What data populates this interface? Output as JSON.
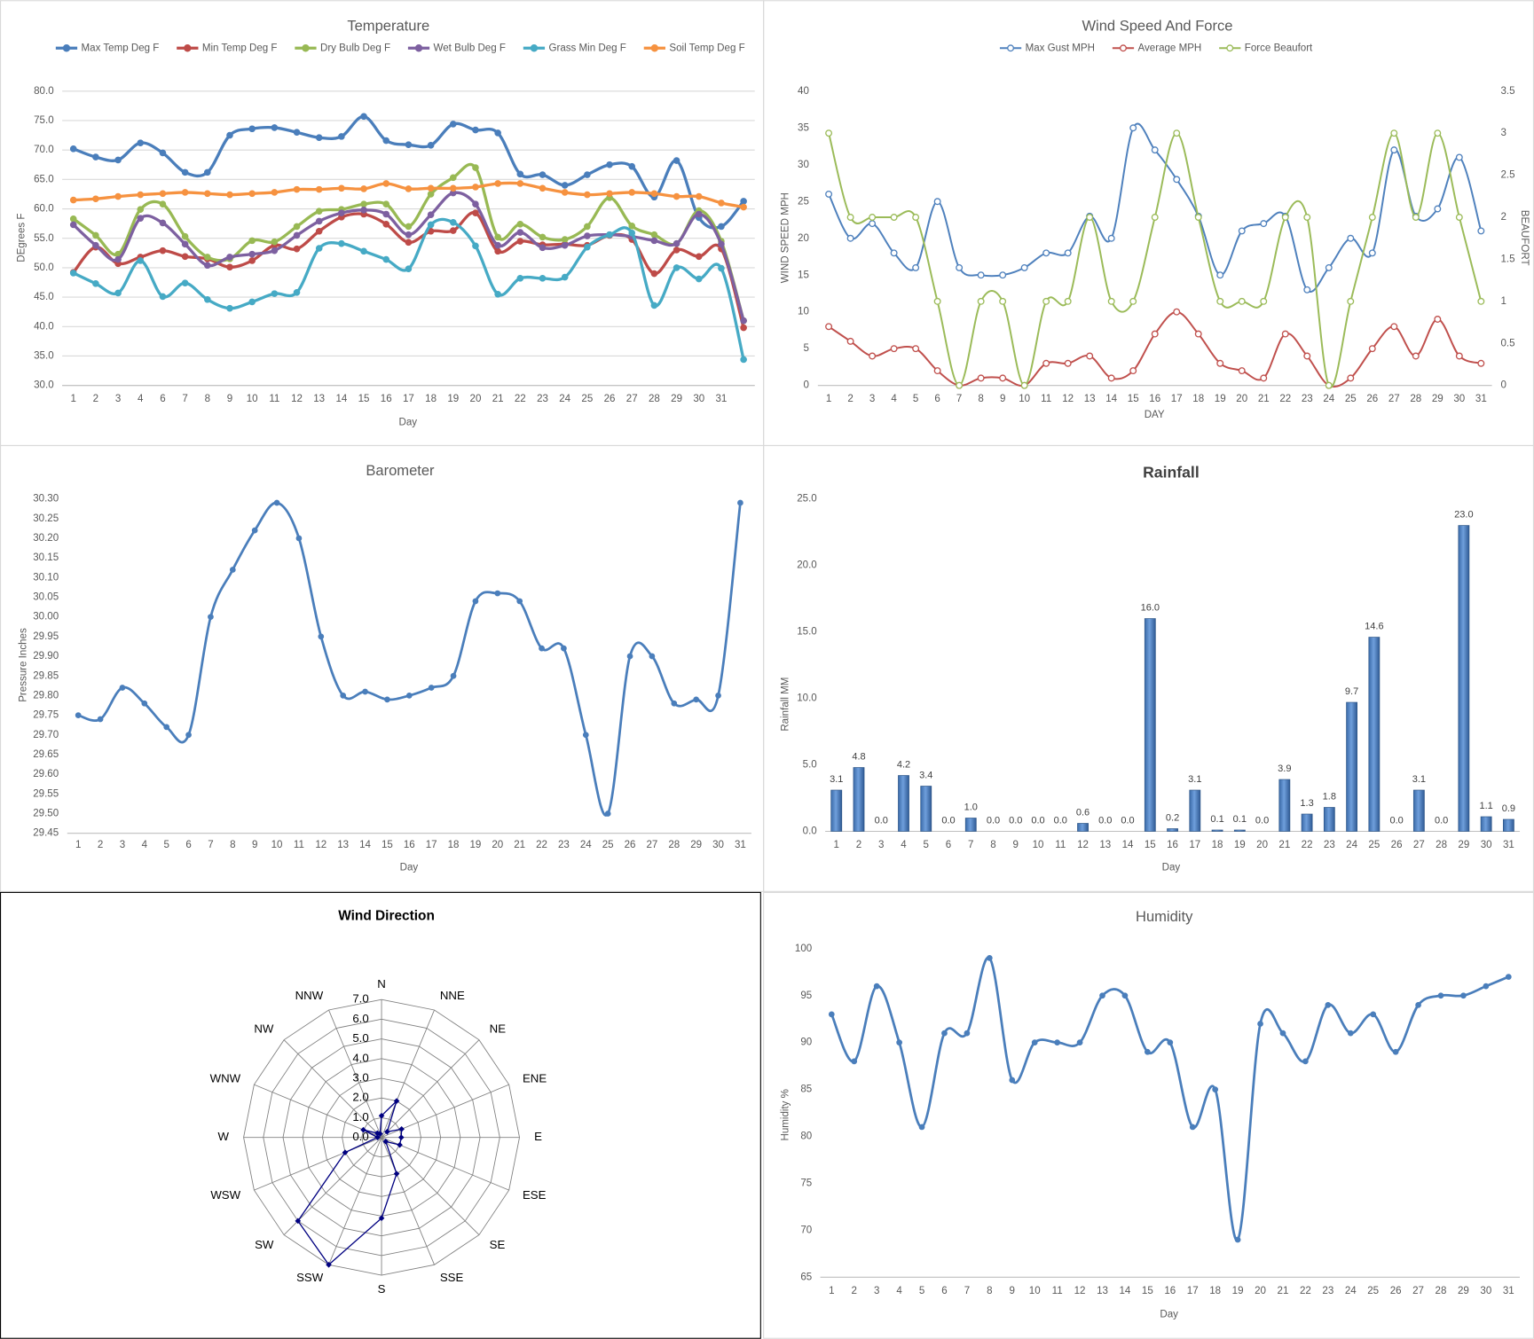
{
  "chart_data": [
    {
      "type": "line",
      "title": "Temperature",
      "x_label": "Day",
      "y_label": "DEgrees F",
      "grid": true,
      "legend": "top",
      "categories": [
        1,
        2,
        3,
        4,
        6,
        7,
        8,
        9,
        10,
        11,
        12,
        13,
        14,
        15,
        16,
        17,
        18,
        19,
        20,
        21,
        22,
        23,
        24,
        25,
        26,
        27,
        28,
        29,
        30,
        31,
        null
      ],
      "ylim": [
        30,
        80
      ],
      "yticks": [
        {
          "value": 30,
          "label": "30.0"
        },
        {
          "value": 35,
          "label": "35.0"
        },
        {
          "value": 40,
          "label": "40.0"
        },
        {
          "value": 45,
          "label": "45.0"
        },
        {
          "value": 50,
          "label": "50.0"
        },
        {
          "value": 55,
          "label": "55.0"
        },
        {
          "value": 60,
          "label": "60.0"
        },
        {
          "value": 65,
          "label": "65.0"
        },
        {
          "value": 70,
          "label": "70.0"
        },
        {
          "value": 75,
          "label": "75.0"
        },
        {
          "value": 80,
          "label": "80.0"
        }
      ],
      "series": [
        {
          "name": "Max Temp Deg F",
          "color": "#4a7ebb",
          "values": [
            70.2,
            68.8,
            68.3,
            71.2,
            69.5,
            66.2,
            66.2,
            72.5,
            73.6,
            73.8,
            73.0,
            72.1,
            72.3,
            75.7,
            71.6,
            70.9,
            70.8,
            74.4,
            73.4,
            72.9,
            65.9,
            65.8,
            64.0,
            65.8,
            67.5,
            67.2,
            62.0,
            68.2,
            58.5,
            57.0,
            61.3
          ]
        },
        {
          "name": "Min Temp Deg F",
          "color": "#be4b48",
          "values": [
            49.2,
            53.5,
            50.7,
            51.8,
            52.9,
            51.9,
            51.5,
            50.1,
            51.2,
            53.8,
            53.2,
            56.2,
            58.6,
            59.1,
            57.4,
            54.3,
            56.2,
            56.3,
            59.3,
            52.8,
            54.5,
            53.9,
            54.0,
            53.8,
            55.5,
            54.8,
            49.0,
            53.0,
            51.9,
            53.2,
            39.8
          ]
        },
        {
          "name": "Dry Bulb Deg F",
          "color": "#98b954",
          "values": [
            58.3,
            55.5,
            52.3,
            59.9,
            60.8,
            55.3,
            51.8,
            51.5,
            54.6,
            54.4,
            57.0,
            59.6,
            59.9,
            60.8,
            60.8,
            57.0,
            62.5,
            65.3,
            67.0,
            55.2,
            57.4,
            55.2,
            54.8,
            57.0,
            61.9,
            57.1,
            55.6,
            54.1,
            59.7,
            54.5,
            41.0
          ]
        },
        {
          "name": "Wet Bulb Deg F",
          "color": "#7d60a0",
          "values": [
            57.3,
            53.8,
            51.4,
            58.4,
            57.6,
            54.0,
            50.4,
            51.8,
            52.3,
            52.9,
            55.5,
            57.9,
            59.3,
            59.8,
            59.1,
            55.6,
            59.0,
            62.7,
            60.8,
            53.8,
            56.0,
            53.4,
            53.8,
            55.4,
            55.6,
            55.3,
            54.6,
            54.1,
            59.1,
            54.0,
            41.0
          ]
        },
        {
          "name": "Grass Min Deg F",
          "color": "#46aac5",
          "values": [
            49.1,
            47.3,
            45.7,
            51.2,
            45.1,
            47.4,
            44.6,
            43.1,
            44.2,
            45.6,
            45.8,
            53.3,
            54.1,
            52.8,
            51.4,
            49.8,
            57.3,
            57.7,
            53.7,
            45.5,
            48.2,
            48.2,
            48.4,
            53.5,
            55.6,
            55.9,
            43.6,
            50.0,
            48.1,
            49.9,
            34.4
          ]
        },
        {
          "name": "Soil Temp Deg F",
          "color": "#f69240",
          "values": [
            61.5,
            61.7,
            62.1,
            62.4,
            62.6,
            62.8,
            62.6,
            62.4,
            62.6,
            62.8,
            63.3,
            63.3,
            63.5,
            63.4,
            64.3,
            63.4,
            63.5,
            63.5,
            63.7,
            64.3,
            64.3,
            63.5,
            62.8,
            62.4,
            62.6,
            62.8,
            62.6,
            62.1,
            62.1,
            61.0,
            60.3
          ]
        }
      ]
    },
    {
      "type": "line",
      "title": "Wind Speed And Force",
      "x_label": "DAY",
      "y_label": "WIND SPEED MPH",
      "y2_label": "BEAUFORT",
      "grid": false,
      "legend": "top",
      "categories": [
        1,
        2,
        3,
        4,
        5,
        6,
        7,
        8,
        9,
        10,
        11,
        12,
        13,
        14,
        15,
        16,
        17,
        18,
        19,
        20,
        21,
        22,
        23,
        24,
        25,
        26,
        27,
        28,
        29,
        30,
        31
      ],
      "ylim": [
        0,
        40
      ],
      "yticks": [
        0,
        5,
        10,
        15,
        20,
        25,
        30,
        35,
        40
      ],
      "y2lim": [
        0,
        3.5
      ],
      "y2ticks": [
        0,
        0.5,
        1,
        1.5,
        2,
        2.5,
        3,
        3.5
      ],
      "series": [
        {
          "name": "Max Gust MPH",
          "color": "#4f81bd",
          "values": [
            26,
            20,
            22,
            18,
            16,
            25,
            16,
            15,
            15,
            16,
            18,
            18,
            23,
            20,
            35,
            32,
            28,
            23,
            15,
            21,
            22,
            23,
            13,
            16,
            20,
            18,
            32,
            23,
            24,
            31,
            21
          ]
        },
        {
          "name": "Average MPH",
          "color": "#c0504d",
          "values": [
            8,
            6,
            4,
            5,
            5,
            2,
            0,
            1,
            1,
            0,
            3,
            3,
            4,
            1,
            2,
            7,
            10,
            7,
            3,
            2,
            1,
            7,
            4,
            0,
            1,
            5,
            8,
            4,
            9,
            4,
            3
          ]
        },
        {
          "name": "Force Beaufort",
          "color": "#9bbb59",
          "axis": "y2",
          "values": [
            3,
            2,
            2,
            2,
            2,
            1,
            0,
            1,
            1,
            0,
            1,
            1,
            2,
            1,
            1,
            2,
            3,
            2,
            1,
            1,
            1,
            2,
            2,
            0,
            1,
            2,
            3,
            2,
            3,
            2,
            1
          ]
        }
      ]
    },
    {
      "type": "line",
      "title": "Barometer",
      "x_label": "Day",
      "y_label": "Pressure Inches",
      "grid": false,
      "color": "#4a7ebb",
      "categories": [
        1,
        2,
        3,
        4,
        5,
        6,
        7,
        8,
        9,
        10,
        11,
        12,
        13,
        14,
        15,
        16,
        17,
        18,
        19,
        20,
        21,
        22,
        23,
        24,
        25,
        26,
        27,
        28,
        29,
        30,
        31
      ],
      "ylim": [
        29.45,
        30.3
      ],
      "yticks": [
        29.45,
        {
          "value": 29.5,
          "label": "29.50"
        },
        29.55,
        {
          "value": 29.6,
          "label": "29.60"
        },
        29.65,
        {
          "value": 29.7,
          "label": "29.70"
        },
        29.75,
        {
          "value": 29.8,
          "label": "29.80"
        },
        29.85,
        {
          "value": 29.9,
          "label": "29.90"
        },
        29.95,
        {
          "value": 30,
          "label": "30.00"
        },
        30.05,
        {
          "value": 30.1,
          "label": "30.10"
        },
        30.15,
        {
          "value": 30.2,
          "label": "30.20"
        },
        30.25,
        {
          "value": 30.3,
          "label": "30.30"
        }
      ],
      "values": [
        29.75,
        29.74,
        29.82,
        29.78,
        29.72,
        29.7,
        30.0,
        30.12,
        30.22,
        30.29,
        30.2,
        29.95,
        29.8,
        29.81,
        29.79,
        29.8,
        29.82,
        29.85,
        30.04,
        30.06,
        30.04,
        29.92,
        29.92,
        29.7,
        29.5,
        29.9,
        29.9,
        29.78,
        29.79,
        29.8,
        30.29
      ]
    },
    {
      "type": "bar",
      "title": "Rainfall",
      "x_label": "Day",
      "y_label": "Rainfall MM",
      "grid": false,
      "color": "#4f81bd",
      "categories": [
        1,
        2,
        3,
        4,
        5,
        6,
        7,
        8,
        9,
        10,
        11,
        12,
        13,
        14,
        15,
        16,
        17,
        18,
        19,
        20,
        21,
        22,
        23,
        24,
        25,
        26,
        27,
        28,
        29,
        30,
        31
      ],
      "ylim": [
        0,
        25
      ],
      "yticks": [
        {
          "value": 0,
          "label": "0.0"
        },
        {
          "value": 5,
          "label": "5.0"
        },
        {
          "value": 10,
          "label": "10.0"
        },
        {
          "value": 15,
          "label": "15.0"
        },
        {
          "value": 20,
          "label": "20.0"
        },
        {
          "value": 25,
          "label": "25.0"
        }
      ],
      "values": [
        3.1,
        4.8,
        0,
        4.2,
        3.4,
        0,
        1,
        0,
        0,
        0,
        0,
        0.6,
        0,
        0,
        16,
        0.2,
        3.1,
        0.1,
        0.1,
        0,
        3.9,
        1.3,
        1.8,
        9.7,
        14.6,
        0,
        3.1,
        0,
        23,
        1.1,
        0.9
      ],
      "value_labels": [
        "3.1",
        "4.8",
        "0.0",
        "4.2",
        "3.4",
        "0.0",
        "1.0",
        "0.0",
        "0.0",
        "0.0",
        "0.0",
        "0.6",
        "0.0",
        "0.0",
        "16.0",
        "0.2",
        "3.1",
        "0.1",
        "0.1",
        "0.0",
        "3.9",
        "1.3",
        "1.8",
        "9.7",
        "14.6",
        "0.0",
        "3.1",
        "0.0",
        "23.0",
        "1.1",
        "0.9"
      ]
    },
    {
      "type": "radar",
      "title": "Wind Direction",
      "color": "#000080",
      "categories": [
        "N",
        "NNE",
        "NE",
        "ENE",
        "E",
        "ESE",
        "SE",
        "SSE",
        "S",
        "SSW",
        "SW",
        "WSW",
        "W",
        "WNW",
        "NW",
        "NNW"
      ],
      "ylim": [
        0,
        7
      ],
      "yticks": [
        {
          "value": 0,
          "label": "0.0"
        },
        {
          "value": 1,
          "label": "1.0"
        },
        {
          "value": 2,
          "label": "2.0"
        },
        {
          "value": 3,
          "label": "3.0"
        },
        {
          "value": 4,
          "label": "4.0"
        },
        {
          "value": 5,
          "label": "5.0"
        },
        {
          "value": 6,
          "label": "6.0"
        },
        {
          "value": 7,
          "label": "7.0"
        }
      ],
      "values": [
        1.1,
        2.0,
        0.4,
        1.1,
        1.0,
        1.0,
        0.3,
        2.0,
        4.1,
        7.0,
        6.0,
        2.0,
        0.2,
        1.0,
        0.3,
        0.2
      ]
    },
    {
      "type": "line",
      "title": "Humidity",
      "x_label": "Day",
      "y_label": "Humidity %",
      "grid": false,
      "color": "#4a7ebb",
      "categories": [
        1,
        2,
        3,
        4,
        5,
        6,
        7,
        8,
        9,
        10,
        11,
        12,
        13,
        14,
        15,
        16,
        17,
        18,
        19,
        20,
        21,
        22,
        23,
        24,
        25,
        26,
        27,
        28,
        29,
        30,
        31
      ],
      "ylim": [
        65,
        100
      ],
      "yticks": [
        65,
        70,
        75,
        80,
        85,
        90,
        95,
        100
      ],
      "values": [
        93,
        88,
        96,
        90,
        81,
        91,
        91,
        99,
        86,
        90,
        90,
        90,
        95,
        95,
        89,
        90,
        81,
        85,
        69,
        92,
        91,
        88,
        94,
        91,
        93,
        89,
        94,
        95,
        95,
        96,
        97
      ]
    }
  ]
}
